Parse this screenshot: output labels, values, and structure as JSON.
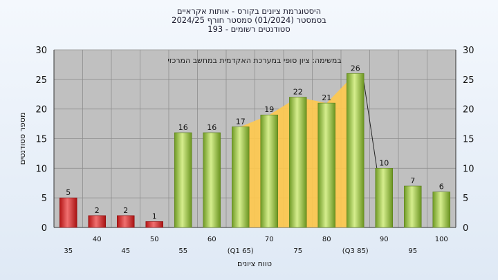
{
  "chart_data": {
    "type": "bar",
    "title_lines": [
      "היסטוגרמת ציונים בקורס - אותות אקראיים",
      "בסמסטר  (01/2024)  סמסטר חורף 2024/25",
      "סטודנטים רשומים - 193"
    ],
    "annotation": "במשימה: ציון סופי במערכת האקדמית במחשב המרכזי",
    "ylabel": "מספר סטודנטים",
    "xlabel": "טווח ציונים",
    "ylim": [
      0,
      30
    ],
    "yticks": [
      0,
      5,
      10,
      15,
      20,
      25,
      30
    ],
    "categories": [
      "35",
      "40",
      "45",
      "50",
      "55",
      "60",
      "65",
      "70",
      "75",
      "80",
      "85",
      "90",
      "95",
      "100"
    ],
    "tick_labels": [
      "35",
      "40",
      "45",
      "50",
      "55",
      "60",
      "(Q1 65)",
      "70",
      "75",
      "80",
      "(Q3 85)",
      "90",
      "95",
      "100"
    ],
    "values": [
      5,
      2,
      2,
      1,
      16,
      16,
      17,
      19,
      22,
      21,
      26,
      10,
      7,
      6
    ],
    "value_labels": [
      "5",
      "2",
      "2",
      "1",
      "16",
      "16",
      "17",
      "19",
      "22",
      "21",
      "26",
      "10",
      "7",
      "6"
    ],
    "failing_color": "#d42a2a",
    "passing_color": "#8fbf3f",
    "iqr_band_color": "#ffc94d",
    "plot_background": "#c0c0c0",
    "grid": true
  }
}
